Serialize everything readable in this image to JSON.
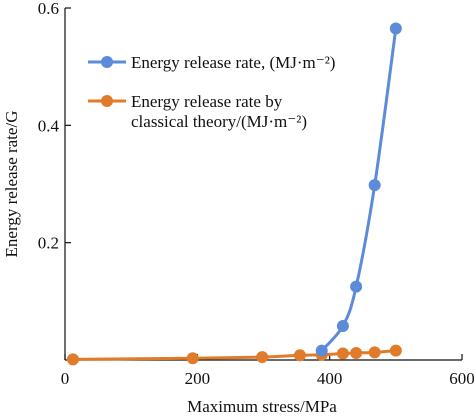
{
  "chart_data": {
    "type": "line",
    "xlabel": "Maximum stress/MPa",
    "ylabel": "Energy release rate/G",
    "xlim": [
      0,
      600
    ],
    "ylim": [
      0,
      0.6
    ],
    "x_ticks": [
      0,
      200,
      400,
      600
    ],
    "y_ticks": [
      0.2,
      0.4,
      0.6
    ],
    "x_tick_labels": [
      "0",
      "200",
      "400",
      "600"
    ],
    "y_tick_labels": [
      "0.2",
      "0.4",
      "0.6"
    ],
    "grid": false,
    "legend_position": "upper-left",
    "series": [
      {
        "name": "Energy release rate, (MJ·m⁻²)",
        "legend_lines": [
          "Energy release rate, (MJ·m⁻²)"
        ],
        "color": "#5b8bd9",
        "points": [
          {
            "x": 388,
            "y": 0.016
          },
          {
            "x": 420,
            "y": 0.058
          },
          {
            "x": 440,
            "y": 0.125
          },
          {
            "x": 468,
            "y": 0.298
          },
          {
            "x": 500,
            "y": 0.565
          }
        ]
      },
      {
        "name": "Energy release rate by classical theory/(MJ·m⁻²)",
        "legend_lines": [
          "Energy release rate by",
          "classical theory/(MJ·m⁻²)"
        ],
        "color": "#e07b2a",
        "points": [
          {
            "x": 12,
            "y": 0.001
          },
          {
            "x": 193,
            "y": 0.003
          },
          {
            "x": 298,
            "y": 0.005
          },
          {
            "x": 355,
            "y": 0.008
          },
          {
            "x": 388,
            "y": 0.009
          },
          {
            "x": 420,
            "y": 0.011
          },
          {
            "x": 440,
            "y": 0.012
          },
          {
            "x": 468,
            "y": 0.013
          },
          {
            "x": 500,
            "y": 0.016
          }
        ]
      }
    ]
  }
}
